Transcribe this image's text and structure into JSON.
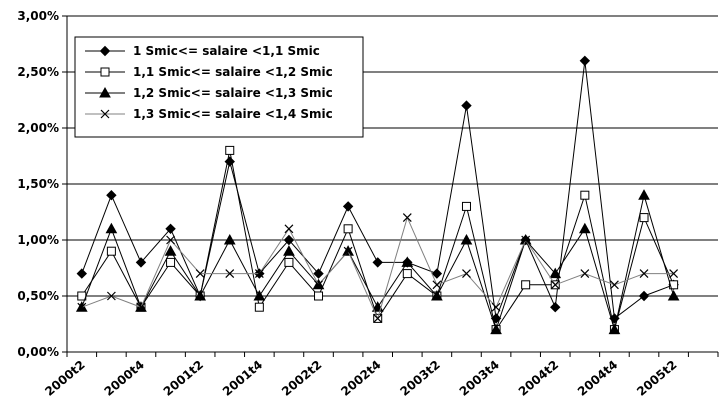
{
  "chart_data": {
    "type": "line",
    "categories": [
      "2000t2",
      "2000t3",
      "2000t4",
      "2001t1",
      "2001t2",
      "2001t3",
      "2001t4",
      "2002t1",
      "2002t2",
      "2002t3",
      "2002t4",
      "2003t1",
      "2003t2",
      "2003t3",
      "2003t4",
      "2004t1",
      "2004t2",
      "2004t3",
      "2004t4",
      "2005t1",
      "2005t2",
      "2005t3"
    ],
    "x_tick_labels": [
      "2000t2",
      "2000t4",
      "2001t2",
      "2001t4",
      "2002t2",
      "2002t4",
      "2003t2",
      "2003t4",
      "2004t2",
      "2004t4",
      "2005t2"
    ],
    "y_tick_labels": [
      "0,00%",
      "0,50%",
      "1,00%",
      "1,50%",
      "2,00%",
      "2,50%",
      "3,00%"
    ],
    "ylim": [
      0,
      3.0
    ],
    "y_unit": "%",
    "grid": "horizontal",
    "legend_position": "top-left",
    "series": [
      {
        "name": "1 Smic<= salaire <1,1 Smic",
        "marker": "diamond-filled",
        "color": "#000000",
        "values": [
          0.7,
          1.4,
          0.8,
          1.1,
          0.5,
          1.7,
          0.7,
          1.0,
          0.7,
          1.3,
          0.8,
          0.8,
          0.7,
          2.2,
          0.3,
          1.0,
          0.4,
          2.6,
          0.3,
          0.5,
          0.6,
          null
        ]
      },
      {
        "name": "1,1 Smic<= salaire <1,2 Smic",
        "marker": "square-open",
        "color": "#000000",
        "values": [
          0.5,
          0.9,
          0.4,
          0.8,
          0.5,
          1.8,
          0.4,
          0.8,
          0.5,
          1.1,
          0.3,
          0.7,
          0.5,
          1.3,
          0.2,
          0.6,
          0.6,
          1.4,
          0.2,
          1.2,
          0.6,
          null
        ]
      },
      {
        "name": "1,2 Smic<= salaire <1,3 Smic",
        "marker": "triangle-filled",
        "color": "#000000",
        "values": [
          0.4,
          1.1,
          0.4,
          0.9,
          0.5,
          1.0,
          0.5,
          0.9,
          0.6,
          0.9,
          0.4,
          0.8,
          0.5,
          1.0,
          0.2,
          1.0,
          0.7,
          1.1,
          0.2,
          1.4,
          0.5,
          null
        ]
      },
      {
        "name": "1,3 Smic<= salaire <1,4 Smic",
        "marker": "x",
        "color": "#808080",
        "values": [
          0.4,
          0.5,
          0.4,
          1.0,
          0.7,
          0.7,
          0.7,
          1.1,
          0.6,
          0.9,
          0.3,
          1.2,
          0.6,
          0.7,
          0.4,
          1.0,
          0.6,
          0.7,
          0.6,
          0.7,
          0.7,
          null
        ]
      }
    ]
  }
}
